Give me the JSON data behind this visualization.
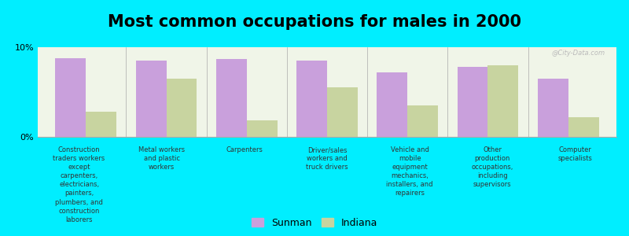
{
  "title": "Most common occupations for males in 2000",
  "categories": [
    "Construction\ntraders workers\nexcept\ncarpenters,\nelectricians,\npainters,\nplumbers, and\nconstruction\nlaborers",
    "Metal workers\nand plastic\nworkers",
    "Carpenters",
    "Driver/sales\nworkers and\ntruck drivers",
    "Vehicle and\nmobile\nequipment\nmechanics,\ninstallers, and\nrepairers",
    "Other\nproduction\noccupations,\nincluding\nsupervisors",
    "Computer\nspecialists"
  ],
  "sunman_values": [
    8.8,
    8.5,
    8.7,
    8.5,
    7.2,
    7.8,
    6.5
  ],
  "indiana_values": [
    2.8,
    6.5,
    1.8,
    5.5,
    3.5,
    8.0,
    2.2
  ],
  "sunman_color": "#c9a0dc",
  "indiana_color": "#c8d4a0",
  "background_color": "#00eeff",
  "plot_bg_color": "#f0f5e8",
  "ylim": [
    0,
    10
  ],
  "ytick_labels": [
    "0%",
    "10%"
  ],
  "ytick_values": [
    0,
    10
  ],
  "legend_labels": [
    "Sunman",
    "Indiana"
  ],
  "watermark": "@City-Data.com",
  "title_fontsize": 15,
  "bar_width": 0.38
}
